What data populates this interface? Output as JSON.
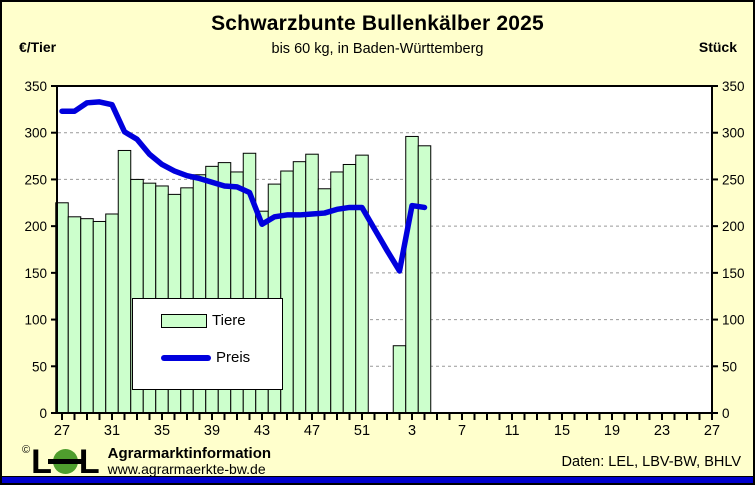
{
  "page": {
    "title": "Schwarzbunte Bullenkälber 2025",
    "subtitle": "bis 60 kg, in Baden-Württemberg",
    "left_unit": "€/Tier",
    "right_unit": "Stück",
    "footer": {
      "copyright": "©",
      "logo_l1": "L",
      "logo_l2": "L",
      "org": "Agrarmarktinformation",
      "url": "www.agrarmaerkte-bw.de",
      "source": "Daten: LEL, LBV-BW, BHLV"
    },
    "colors": {
      "background": "#ffffcc",
      "plot_background": "#ffffff",
      "bar_fill": "#ccffcc",
      "bar_stroke": "#000000",
      "line": "#0000dd",
      "grid": "#999999",
      "legend_background": "#ffffff",
      "bottom_strip": "#0000cc",
      "logo_green": "#4f9e2e"
    }
  },
  "legend": {
    "items": [
      {
        "label": "Tiere",
        "type": "bar"
      },
      {
        "label": "Preis",
        "type": "line"
      }
    ]
  },
  "chart_data": {
    "type": "bar+line",
    "title": "Schwarzbunte Bullenkälber 2025",
    "subtitle": "bis 60 kg, in Baden-Württemberg",
    "ylabel_left": "€/Tier",
    "ylabel_right": "Stück",
    "ylim": [
      0,
      350
    ],
    "ytick_step": 50,
    "grid": "horizontal dashed",
    "legend_position": "inside lower-left",
    "x_description": "calendar weeks, KW 27 (2024) to KW 27 (2025), bars/line end at KW 4",
    "x_axis_tick_labels": [
      "27",
      "31",
      "35",
      "39",
      "43",
      "47",
      "51",
      "3",
      "7",
      "11",
      "15",
      "19",
      "23",
      "27"
    ],
    "weeks": [
      "27",
      "28",
      "29",
      "30",
      "31",
      "32",
      "33",
      "34",
      "35",
      "36",
      "37",
      "38",
      "39",
      "40",
      "41",
      "42",
      "43",
      "44",
      "45",
      "46",
      "47",
      "48",
      "49",
      "50",
      "51",
      "52",
      "1",
      "2",
      "3",
      "4"
    ],
    "series": [
      {
        "name": "Tiere",
        "type": "bar",
        "axis": "right (Stück)",
        "values": [
          225,
          210,
          208,
          205,
          213,
          281,
          250,
          246,
          243,
          234,
          241,
          255,
          264,
          268,
          258,
          278,
          216,
          245,
          259,
          269,
          277,
          240,
          258,
          266,
          276,
          null,
          null,
          72,
          296,
          286
        ]
      },
      {
        "name": "Preis",
        "type": "line",
        "axis": "left (€/Tier)",
        "values": [
          323,
          323,
          332,
          333,
          330,
          301,
          293,
          277,
          266,
          259,
          254,
          251,
          247,
          243,
          242,
          236,
          202,
          210,
          212,
          212,
          213,
          214,
          218,
          220,
          220,
          197,
          174,
          152,
          222,
          220
        ]
      }
    ]
  }
}
